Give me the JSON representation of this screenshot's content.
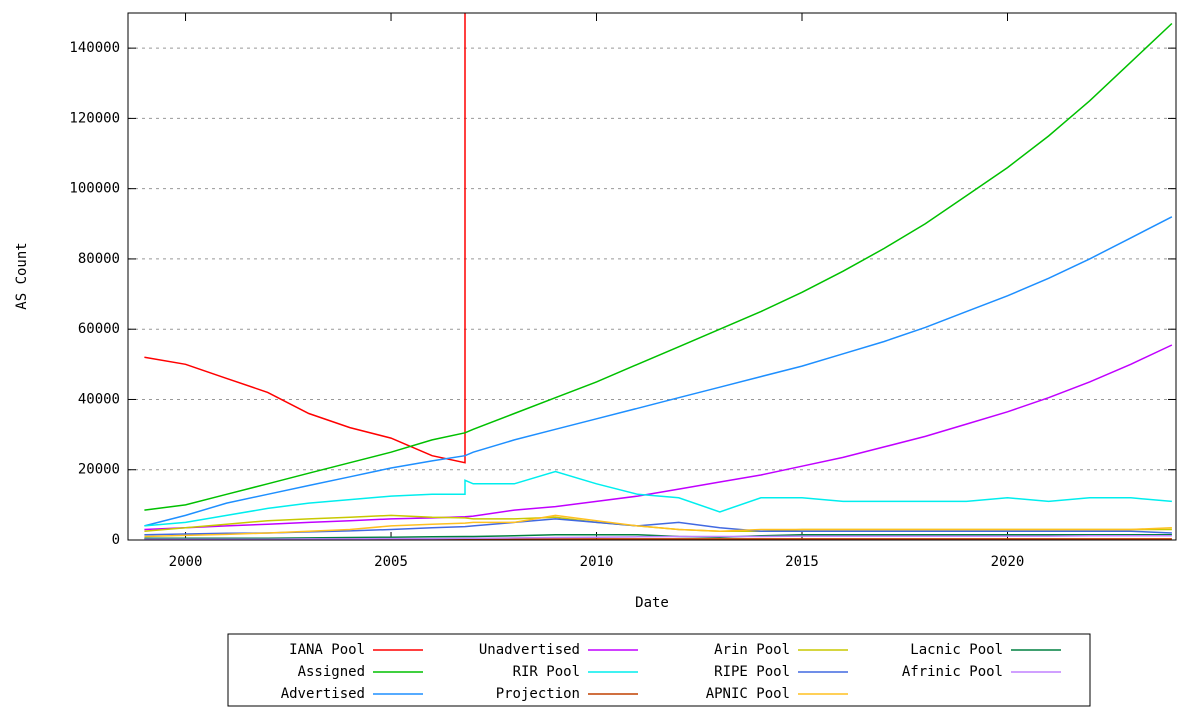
{
  "chart_data": {
    "type": "line",
    "x_label": "Date",
    "y_label": "AS Count",
    "x": [
      1999,
      2000,
      2001,
      2002,
      2003,
      2004,
      2005,
      2006,
      2006.8,
      2006.8,
      2007,
      2008,
      2009,
      2010,
      2011,
      2012,
      2013,
      2014,
      2015,
      2016,
      2017,
      2018,
      2019,
      2020,
      2021,
      2022,
      2023,
      2024
    ],
    "xlim": [
      1998.6,
      2024.1
    ],
    "xticks": [
      2000,
      2005,
      2010,
      2015,
      2020
    ],
    "ylim": [
      0,
      150000
    ],
    "yticks": [
      0,
      20000,
      40000,
      60000,
      80000,
      100000,
      120000,
      140000
    ],
    "grid": true,
    "series": [
      {
        "name": "IANA Pool",
        "color": "#ff0000",
        "values": [
          52000,
          50000,
          46000,
          42000,
          36000,
          32000,
          29000,
          24000,
          22000,
          150000,
          null,
          null,
          null,
          null,
          null,
          null,
          null,
          null,
          null,
          null,
          null,
          null,
          null,
          null,
          null,
          null,
          null,
          null
        ]
      },
      {
        "name": "Assigned",
        "color": "#00c000",
        "values": [
          8500,
          10000,
          13000,
          16000,
          19000,
          22000,
          25000,
          28500,
          30500,
          30500,
          31500,
          36000,
          40500,
          45000,
          50000,
          55000,
          60000,
          65000,
          70500,
          76500,
          83000,
          90000,
          98000,
          106000,
          115000,
          125000,
          136000,
          147000
        ]
      },
      {
        "name": "Advertised",
        "color": "#1e8fff",
        "values": [
          4000,
          7000,
          10500,
          13000,
          15500,
          18000,
          20500,
          22500,
          24000,
          24000,
          25000,
          28500,
          31500,
          34500,
          37500,
          40500,
          43500,
          46500,
          49500,
          53000,
          56500,
          60500,
          65000,
          69500,
          74500,
          80000,
          86000,
          92000
        ]
      },
      {
        "name": "Unadvertised",
        "color": "#c000ff",
        "values": [
          3000,
          3500,
          4000,
          4500,
          5000,
          5500,
          6000,
          6300,
          6600,
          6600,
          6800,
          8500,
          9500,
          11000,
          12500,
          14500,
          16500,
          18500,
          21000,
          23500,
          26500,
          29500,
          33000,
          36500,
          40500,
          45000,
          50000,
          55500
        ]
      },
      {
        "name": "RIR Pool",
        "color": "#00eeee",
        "values": [
          4000,
          5000,
          7000,
          9000,
          10500,
          11500,
          12500,
          13000,
          13000,
          17000,
          16000,
          16000,
          19500,
          16000,
          13000,
          12000,
          8000,
          12000,
          12000,
          11000,
          11000,
          11000,
          11000,
          12000,
          11000,
          12000,
          12000,
          11000
        ]
      },
      {
        "name": "Projection",
        "color": "#c04000",
        "values": [
          300,
          300,
          300,
          300,
          300,
          300,
          300,
          300,
          300,
          300,
          300,
          300,
          300,
          300,
          300,
          300,
          300,
          300,
          300,
          300,
          300,
          300,
          300,
          300,
          300,
          300,
          300,
          300
        ]
      },
      {
        "name": "Arin Pool",
        "color": "#c8c800",
        "values": [
          2500,
          3500,
          4500,
          5500,
          6000,
          6500,
          7000,
          6500,
          6300,
          6300,
          6000,
          6000,
          6500,
          5000,
          4000,
          3000,
          2500,
          2500,
          3000,
          3000,
          3000,
          3000,
          3000,
          3000,
          3000,
          3000,
          3000,
          3000
        ]
      },
      {
        "name": "RIPE Pool",
        "color": "#4169e1",
        "values": [
          1500,
          1700,
          1900,
          2000,
          2300,
          2600,
          3000,
          3500,
          3800,
          3800,
          4000,
          5000,
          6000,
          5000,
          4000,
          5000,
          3500,
          2500,
          2500,
          2500,
          2500,
          2500,
          2500,
          2500,
          2500,
          2500,
          2500,
          2000
        ]
      },
      {
        "name": "APNIC Pool",
        "color": "#ffc020",
        "values": [
          1000,
          1300,
          1600,
          2000,
          2500,
          3000,
          4000,
          4500,
          4800,
          4800,
          5000,
          5000,
          7000,
          5500,
          4000,
          3000,
          2500,
          3000,
          3000,
          3000,
          3000,
          3000,
          3000,
          3000,
          3000,
          3000,
          3000,
          3500
        ]
      },
      {
        "name": "Lacnic Pool",
        "color": "#008040",
        "values": [
          500,
          500,
          500,
          500,
          600,
          700,
          800,
          900,
          1000,
          1000,
          1000,
          1200,
          1500,
          1500,
          1500,
          1000,
          800,
          1200,
          1500,
          1500,
          1500,
          1500,
          1500,
          1500,
          1500,
          1500,
          1500,
          1500
        ]
      },
      {
        "name": "Afrinic Pool",
        "color": "#c080ff",
        "values": [
          200,
          200,
          200,
          200,
          300,
          300,
          400,
          400,
          500,
          500,
          500,
          600,
          700,
          800,
          900,
          1000,
          1000,
          1000,
          1100,
          1100,
          1100,
          1100,
          1100,
          1100,
          1100,
          1200,
          1200,
          1200
        ]
      }
    ]
  }
}
